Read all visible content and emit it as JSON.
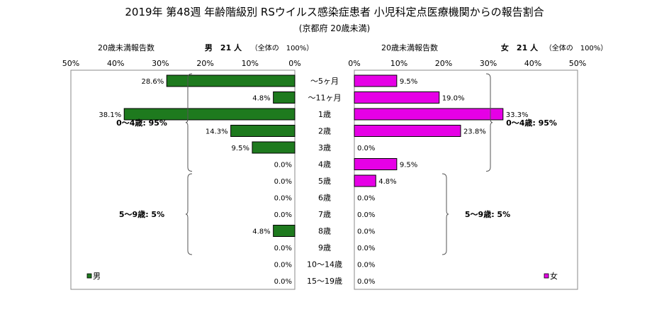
{
  "title": "2019年 第48週 年齢階級別 RSウイルス感染症患者 小児科定点医療機関からの報告割合",
  "subtitle": "(京都府 20歳未満)",
  "chart_data": {
    "type": "bar",
    "categories": [
      "～5ヶ月",
      "～11ヶ月",
      "1歳",
      "2歳",
      "3歳",
      "4歳",
      "5歳",
      "6歳",
      "7歳",
      "8歳",
      "9歳",
      "10～14歳",
      "15～19歳"
    ],
    "xlim": [
      0,
      50
    ],
    "x_ticks": [
      "50%",
      "40%",
      "30%",
      "20%",
      "10%",
      "0%"
    ],
    "x_ticks_right": [
      "0%",
      "10%",
      "20%",
      "30%",
      "40%",
      "50%"
    ],
    "grid": false,
    "series": [
      {
        "name": "男",
        "side": "left",
        "color": "#1e7a1e",
        "header_label": "20歳未満報告数",
        "header_count": "男　21 人",
        "header_total": "（全体の　100%）",
        "values": [
          28.6,
          4.8,
          38.1,
          14.3,
          9.5,
          0.0,
          0.0,
          0.0,
          0.0,
          4.8,
          0.0,
          0.0,
          0.0
        ],
        "labels": [
          "28.6%",
          "4.8%",
          "38.1%",
          "14.3%",
          "9.5%",
          "0.0%",
          "0.0%",
          "0.0%",
          "0.0%",
          "4.8%",
          "0.0%",
          "0.0%",
          "0.0%"
        ],
        "legend": "男",
        "brackets": [
          {
            "label": "0～4歳: 95%",
            "from": 0,
            "to": 5
          },
          {
            "label": "5～9歳: 5%",
            "from": 6,
            "to": 10
          }
        ]
      },
      {
        "name": "女",
        "side": "right",
        "color": "#e600e6",
        "header_label": "20歳未満報告数",
        "header_count": "女　21 人",
        "header_total": "（全体の　100%）",
        "values": [
          9.5,
          19.0,
          33.3,
          23.8,
          0.0,
          9.5,
          4.8,
          0.0,
          0.0,
          0.0,
          0.0,
          0.0,
          0.0
        ],
        "labels": [
          "9.5%",
          "19.0%",
          "33.3%",
          "23.8%",
          "0.0%",
          "9.5%",
          "4.8%",
          "0.0%",
          "0.0%",
          "0.0%",
          "0.0%",
          "0.0%",
          "0.0%"
        ],
        "legend": "女",
        "brackets": [
          {
            "label": "0～4歳: 95%",
            "from": 0,
            "to": 5
          },
          {
            "label": "5～9歳: 5%",
            "from": 6,
            "to": 10
          }
        ]
      }
    ]
  }
}
